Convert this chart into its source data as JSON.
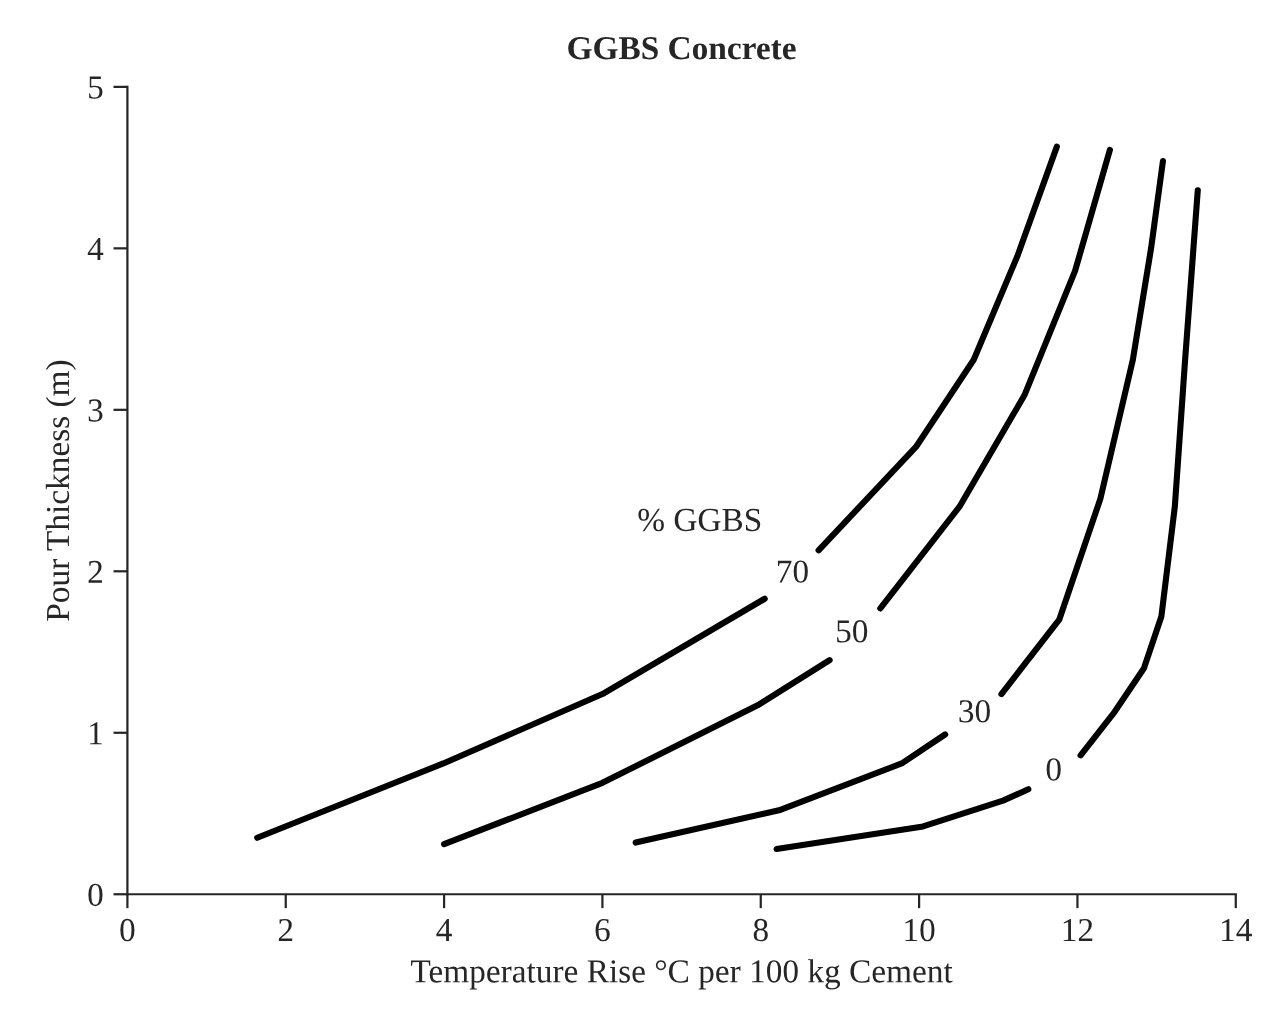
{
  "chart_data": {
    "type": "line",
    "title": "GGBS Concrete",
    "xlabel": "Temperature Rise °C per 100 kg Cement",
    "ylabel": "Pour Thickness (m)",
    "xlim": [
      0,
      14
    ],
    "xticks": [
      0,
      2,
      4,
      6,
      8,
      10,
      12,
      14
    ],
    "ylim": [
      0,
      5
    ],
    "yticks": [
      0,
      1,
      2,
      3,
      4,
      5
    ],
    "grid": false,
    "legend": false,
    "marker": "none",
    "line_style": "solid",
    "annotations": [
      "% GGBS"
    ],
    "series": [
      {
        "name": "70",
        "color": "#000000",
        "x": [
          1.64,
          3.99,
          6.0,
          8.05,
          8.4,
          8.73,
          9.96,
          10.69,
          11.24,
          11.74
        ],
        "values": [
          0.35,
          0.81,
          1.24,
          1.83,
          null,
          2.13,
          2.77,
          3.31,
          3.95,
          4.63
        ]
      },
      {
        "name": "50",
        "color": "#000000",
        "x": [
          4.0,
          6.0,
          7.96,
          8.87,
          9.15,
          9.51,
          10.51,
          11.33,
          11.97,
          12.41
        ],
        "values": [
          0.31,
          0.69,
          1.17,
          1.45,
          null,
          1.77,
          2.4,
          3.09,
          3.86,
          4.61
        ]
      },
      {
        "name": "30",
        "color": "#000000",
        "x": [
          6.42,
          8.23,
          9.78,
          10.33,
          10.7,
          11.04,
          11.77,
          12.29,
          12.7,
          12.93,
          13.08
        ],
        "values": [
          0.32,
          0.52,
          0.81,
          0.99,
          null,
          1.24,
          1.7,
          2.45,
          3.31,
          4.0,
          4.54
        ]
      },
      {
        "name": "0",
        "color": "#000000",
        "x": [
          8.2,
          10.05,
          11.06,
          11.38,
          11.7,
          12.04,
          12.47,
          12.84,
          13.06,
          13.23,
          13.36,
          13.52
        ],
        "values": [
          0.28,
          0.42,
          0.58,
          0.65,
          null,
          0.86,
          1.13,
          1.4,
          1.72,
          2.4,
          3.31,
          4.36
        ]
      }
    ]
  }
}
